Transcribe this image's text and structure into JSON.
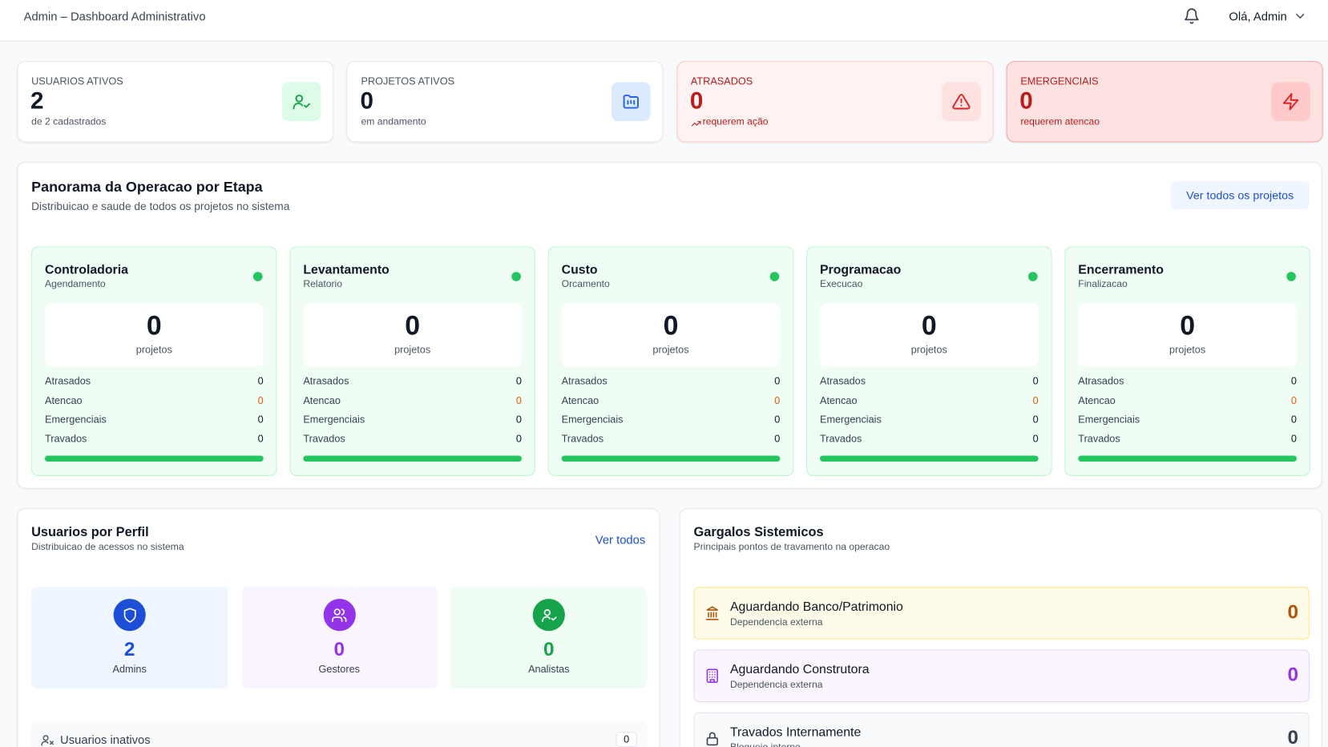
{
  "header": {
    "title": "Admin – Dashboard Administrativo",
    "greeting": "Olá, Admin"
  },
  "stats": [
    {
      "label": "USUARIOS ATIVOS",
      "value": 2,
      "sub": "de 2 cadastrados"
    },
    {
      "label": "PROJETOS ATIVOS",
      "value": 0,
      "sub": "em andamento"
    },
    {
      "label": "ATRASADOS",
      "value": 0,
      "sub": "requerem ação"
    },
    {
      "label": "EMERGENCIAIS",
      "value": 0,
      "sub": "requerem atencao"
    }
  ],
  "overview": {
    "title": "Panorama da Operacao por Etapa",
    "subtitle": "Distribuicao e saude de todos os projetos no sistema",
    "button": "Ver todos os projetos",
    "stages": [
      {
        "name": "Controladoria",
        "sub": "Agendamento",
        "count": 0,
        "count_label": "projetos",
        "rows": [
          {
            "label": "Atrasados",
            "value": 0
          },
          {
            "label": "Atencao",
            "value": 0
          },
          {
            "label": "Emergenciais",
            "value": 0
          },
          {
            "label": "Travados",
            "value": 0
          }
        ]
      },
      {
        "name": "Levantamento",
        "sub": "Relatorio",
        "count": 0,
        "count_label": "projetos",
        "rows": [
          {
            "label": "Atrasados",
            "value": 0
          },
          {
            "label": "Atencao",
            "value": 0
          },
          {
            "label": "Emergenciais",
            "value": 0
          },
          {
            "label": "Travados",
            "value": 0
          }
        ]
      },
      {
        "name": "Custo",
        "sub": "Orcamento",
        "count": 0,
        "count_label": "projetos",
        "rows": [
          {
            "label": "Atrasados",
            "value": 0
          },
          {
            "label": "Atencao",
            "value": 0
          },
          {
            "label": "Emergenciais",
            "value": 0
          },
          {
            "label": "Travados",
            "value": 0
          }
        ]
      },
      {
        "name": "Programacao",
        "sub": "Execucao",
        "count": 0,
        "count_label": "projetos",
        "rows": [
          {
            "label": "Atrasados",
            "value": 0
          },
          {
            "label": "Atencao",
            "value": 0
          },
          {
            "label": "Emergenciais",
            "value": 0
          },
          {
            "label": "Travados",
            "value": 0
          }
        ]
      },
      {
        "name": "Encerramento",
        "sub": "Finalizacao",
        "count": 0,
        "count_label": "projetos",
        "rows": [
          {
            "label": "Atrasados",
            "value": 0
          },
          {
            "label": "Atencao",
            "value": 0
          },
          {
            "label": "Emergenciais",
            "value": 0
          },
          {
            "label": "Travados",
            "value": 0
          }
        ]
      }
    ]
  },
  "users": {
    "title": "Usuarios por Perfil",
    "subtitle": "Distribuicao de acessos no sistema",
    "link": "Ver todos",
    "profiles": [
      {
        "value": 2,
        "label": "Admins"
      },
      {
        "value": 0,
        "label": "Gestores"
      },
      {
        "value": 0,
        "label": "Analistas"
      }
    ],
    "inactive": {
      "label": "Usuarios inativos",
      "value": 0
    }
  },
  "bottlenecks": {
    "title": "Gargalos Sistemicos",
    "subtitle": "Principais pontos de travamento na operacao",
    "items": [
      {
        "title": "Aguardando Banco/Patrimonio",
        "sub": "Dependencia externa",
        "value": 0
      },
      {
        "title": "Aguardando Construtora",
        "sub": "Dependencia externa",
        "value": 0
      },
      {
        "title": "Travados Internamente",
        "sub": "Bloqueio interno",
        "value": 0
      }
    ]
  }
}
